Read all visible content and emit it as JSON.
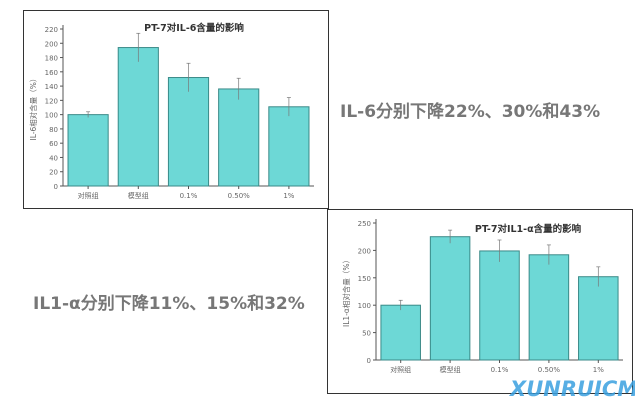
{
  "chart_data": [
    {
      "type": "bar",
      "title": "PT-7对IL-6含量的影响",
      "ylabel": "IL-6相对含量（%）",
      "xlabel": "",
      "categories": [
        "对照组",
        "模型组",
        "0.1%",
        "0.50%",
        "1%"
      ],
      "values": [
        100,
        194,
        152,
        136,
        111
      ],
      "errors": [
        4,
        20,
        20,
        15,
        13
      ],
      "ylim": [
        0,
        220
      ],
      "yticks": [
        0,
        20,
        40,
        60,
        80,
        100,
        120,
        140,
        160,
        180,
        200,
        220
      ],
      "grid": false,
      "bar_color": "#6dd8d6"
    },
    {
      "type": "bar",
      "title": "PT-7对IL1-α含量的影响",
      "ylabel": "IL1-α相对含量（%）",
      "xlabel": "",
      "categories": [
        "对照组",
        "模型组",
        "0.1%",
        "0.50%",
        "1%"
      ],
      "values": [
        100,
        225,
        199,
        192,
        152
      ],
      "errors": [
        9,
        12,
        20,
        18,
        18
      ],
      "ylim": [
        0,
        250
      ],
      "yticks": [
        0,
        50,
        100,
        150,
        200,
        250
      ],
      "grid": false,
      "bar_color": "#6dd8d6"
    }
  ],
  "notes": {
    "il6": "IL-6分别下降22%、30%和43%",
    "il1a": "IL1-α分别下降11%、15%和32%"
  },
  "watermark": "XUNRUICMS"
}
